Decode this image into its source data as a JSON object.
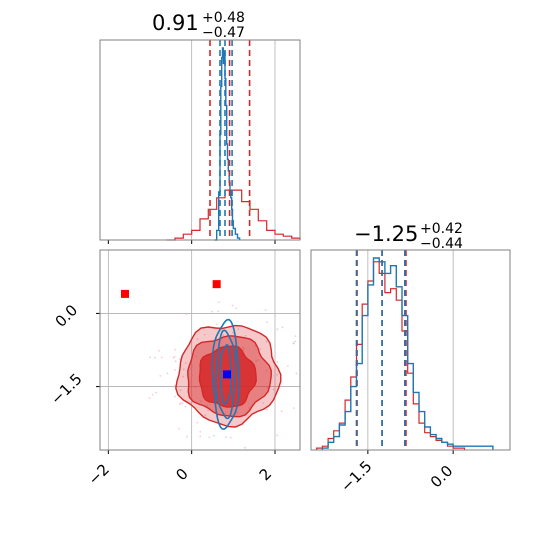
{
  "chart_data": {
    "type": "corner",
    "parameters": [
      {
        "title": {
          "median": "0.91",
          "plus": "+0.48",
          "minus": "−0.47"
        }
      },
      {
        "title": {
          "median": "−1.25",
          "plus": "+0.42",
          "minus": "−0.44"
        }
      }
    ],
    "panels": {
      "p1_hist": {
        "xlim": [
          -2.2,
          2.6
        ],
        "xticks": [
          -2,
          0,
          2
        ],
        "red_lines": [
          0.44,
          0.91,
          1.39
        ],
        "blue_lines": [
          0.68,
          0.8,
          0.97
        ],
        "blue_hist": {
          "x": [
            0.55,
            0.6,
            0.65,
            0.68,
            0.7,
            0.72,
            0.74,
            0.76,
            0.78,
            0.8,
            0.82,
            0.84,
            0.86,
            0.88,
            0.9,
            0.92,
            0.94,
            0.96,
            0.98,
            1.0,
            1.05,
            1.1,
            1.15
          ],
          "y": [
            0.0,
            0.05,
            0.25,
            0.55,
            0.8,
            0.95,
            1.0,
            0.92,
            0.98,
            0.84,
            0.7,
            0.5,
            0.42,
            0.36,
            0.3,
            0.26,
            0.22,
            0.16,
            0.1,
            0.06,
            0.03,
            0.01,
            0.0
          ]
        },
        "red_hist": {
          "x": [
            -0.6,
            -0.4,
            -0.2,
            0.0,
            0.2,
            0.4,
            0.6,
            0.8,
            1.0,
            1.2,
            1.4,
            1.6,
            1.8,
            2.0,
            2.2,
            2.4,
            2.6
          ],
          "y": [
            0.0,
            0.01,
            0.03,
            0.05,
            0.11,
            0.16,
            0.22,
            0.26,
            0.26,
            0.2,
            0.16,
            0.1,
            0.05,
            0.03,
            0.02,
            0.01,
            0.0
          ]
        }
      },
      "p2_hist": {
        "xlim": [
          -2.5,
          1.0
        ],
        "xticks": [
          -1.5,
          0.0
        ],
        "red_lines": [
          -1.69,
          -1.25,
          -0.83
        ],
        "blue_lines": [
          -1.7,
          -1.25,
          -0.85
        ],
        "blue_hist": {
          "x": [
            -2.3,
            -2.2,
            -2.1,
            -2.0,
            -1.9,
            -1.8,
            -1.7,
            -1.6,
            -1.5,
            -1.4,
            -1.3,
            -1.2,
            -1.1,
            -1.0,
            -0.9,
            -0.8,
            -0.7,
            -0.6,
            -0.5,
            -0.4,
            -0.3,
            -0.2,
            -0.1,
            0.0,
            0.2,
            0.5,
            0.7
          ],
          "y": [
            0.01,
            0.04,
            0.07,
            0.13,
            0.2,
            0.33,
            0.45,
            0.7,
            0.86,
            1.0,
            0.98,
            0.92,
            0.96,
            0.85,
            0.7,
            0.45,
            0.3,
            0.2,
            0.12,
            0.08,
            0.06,
            0.04,
            0.03,
            0.02,
            0.02,
            0.02,
            0.0
          ]
        },
        "red_hist": {
          "x": [
            -2.4,
            -2.3,
            -2.2,
            -2.1,
            -2.0,
            -1.9,
            -1.8,
            -1.7,
            -1.6,
            -1.5,
            -1.4,
            -1.3,
            -1.2,
            -1.1,
            -1.0,
            -0.9,
            -0.8,
            -0.7,
            -0.6,
            -0.5,
            -0.4,
            -0.3,
            -0.2,
            -0.1,
            0.0,
            0.2
          ],
          "y": [
            0.01,
            0.02,
            0.06,
            0.1,
            0.14,
            0.26,
            0.38,
            0.55,
            0.76,
            0.88,
            0.98,
            0.92,
            0.82,
            0.84,
            0.78,
            0.62,
            0.4,
            0.24,
            0.14,
            0.09,
            0.07,
            0.05,
            0.04,
            0.02,
            0.01,
            0.0
          ]
        }
      },
      "joint": {
        "xlim": [
          -2.2,
          2.6
        ],
        "ylim": [
          -2.8,
          1.3
        ],
        "xticks": [
          -2,
          0,
          2
        ],
        "yticks": [
          0.0,
          -1.5
        ],
        "red_markers": [
          {
            "x": -1.6,
            "y": 0.4
          },
          {
            "x": 0.6,
            "y": 0.6
          }
        ],
        "blue_markers": [
          {
            "x": 0.85,
            "y": -1.25
          }
        ],
        "red_contours": [
          {
            "cx": 0.88,
            "cy": -1.25,
            "rx": 1.22,
            "ry": 1.02
          },
          {
            "cx": 0.88,
            "cy": -1.28,
            "rx": 1.0,
            "ry": 0.82
          },
          {
            "cx": 0.85,
            "cy": -1.3,
            "rx": 0.68,
            "ry": 0.62
          }
        ],
        "blue_contours": [
          {
            "cx": 0.82,
            "cy": -1.25,
            "rx": 0.32,
            "ry": 1.1
          },
          {
            "cx": 0.82,
            "cy": -1.25,
            "rx": 0.23,
            "ry": 0.88
          },
          {
            "cx": 0.82,
            "cy": -1.25,
            "rx": 0.13,
            "ry": 0.6
          }
        ]
      }
    },
    "colors": {
      "red": "#d62728",
      "blue": "#1f77b4",
      "marker_red": "#ff0000",
      "marker_blue": "#0000ff",
      "grid": "#b0b0b0"
    }
  }
}
